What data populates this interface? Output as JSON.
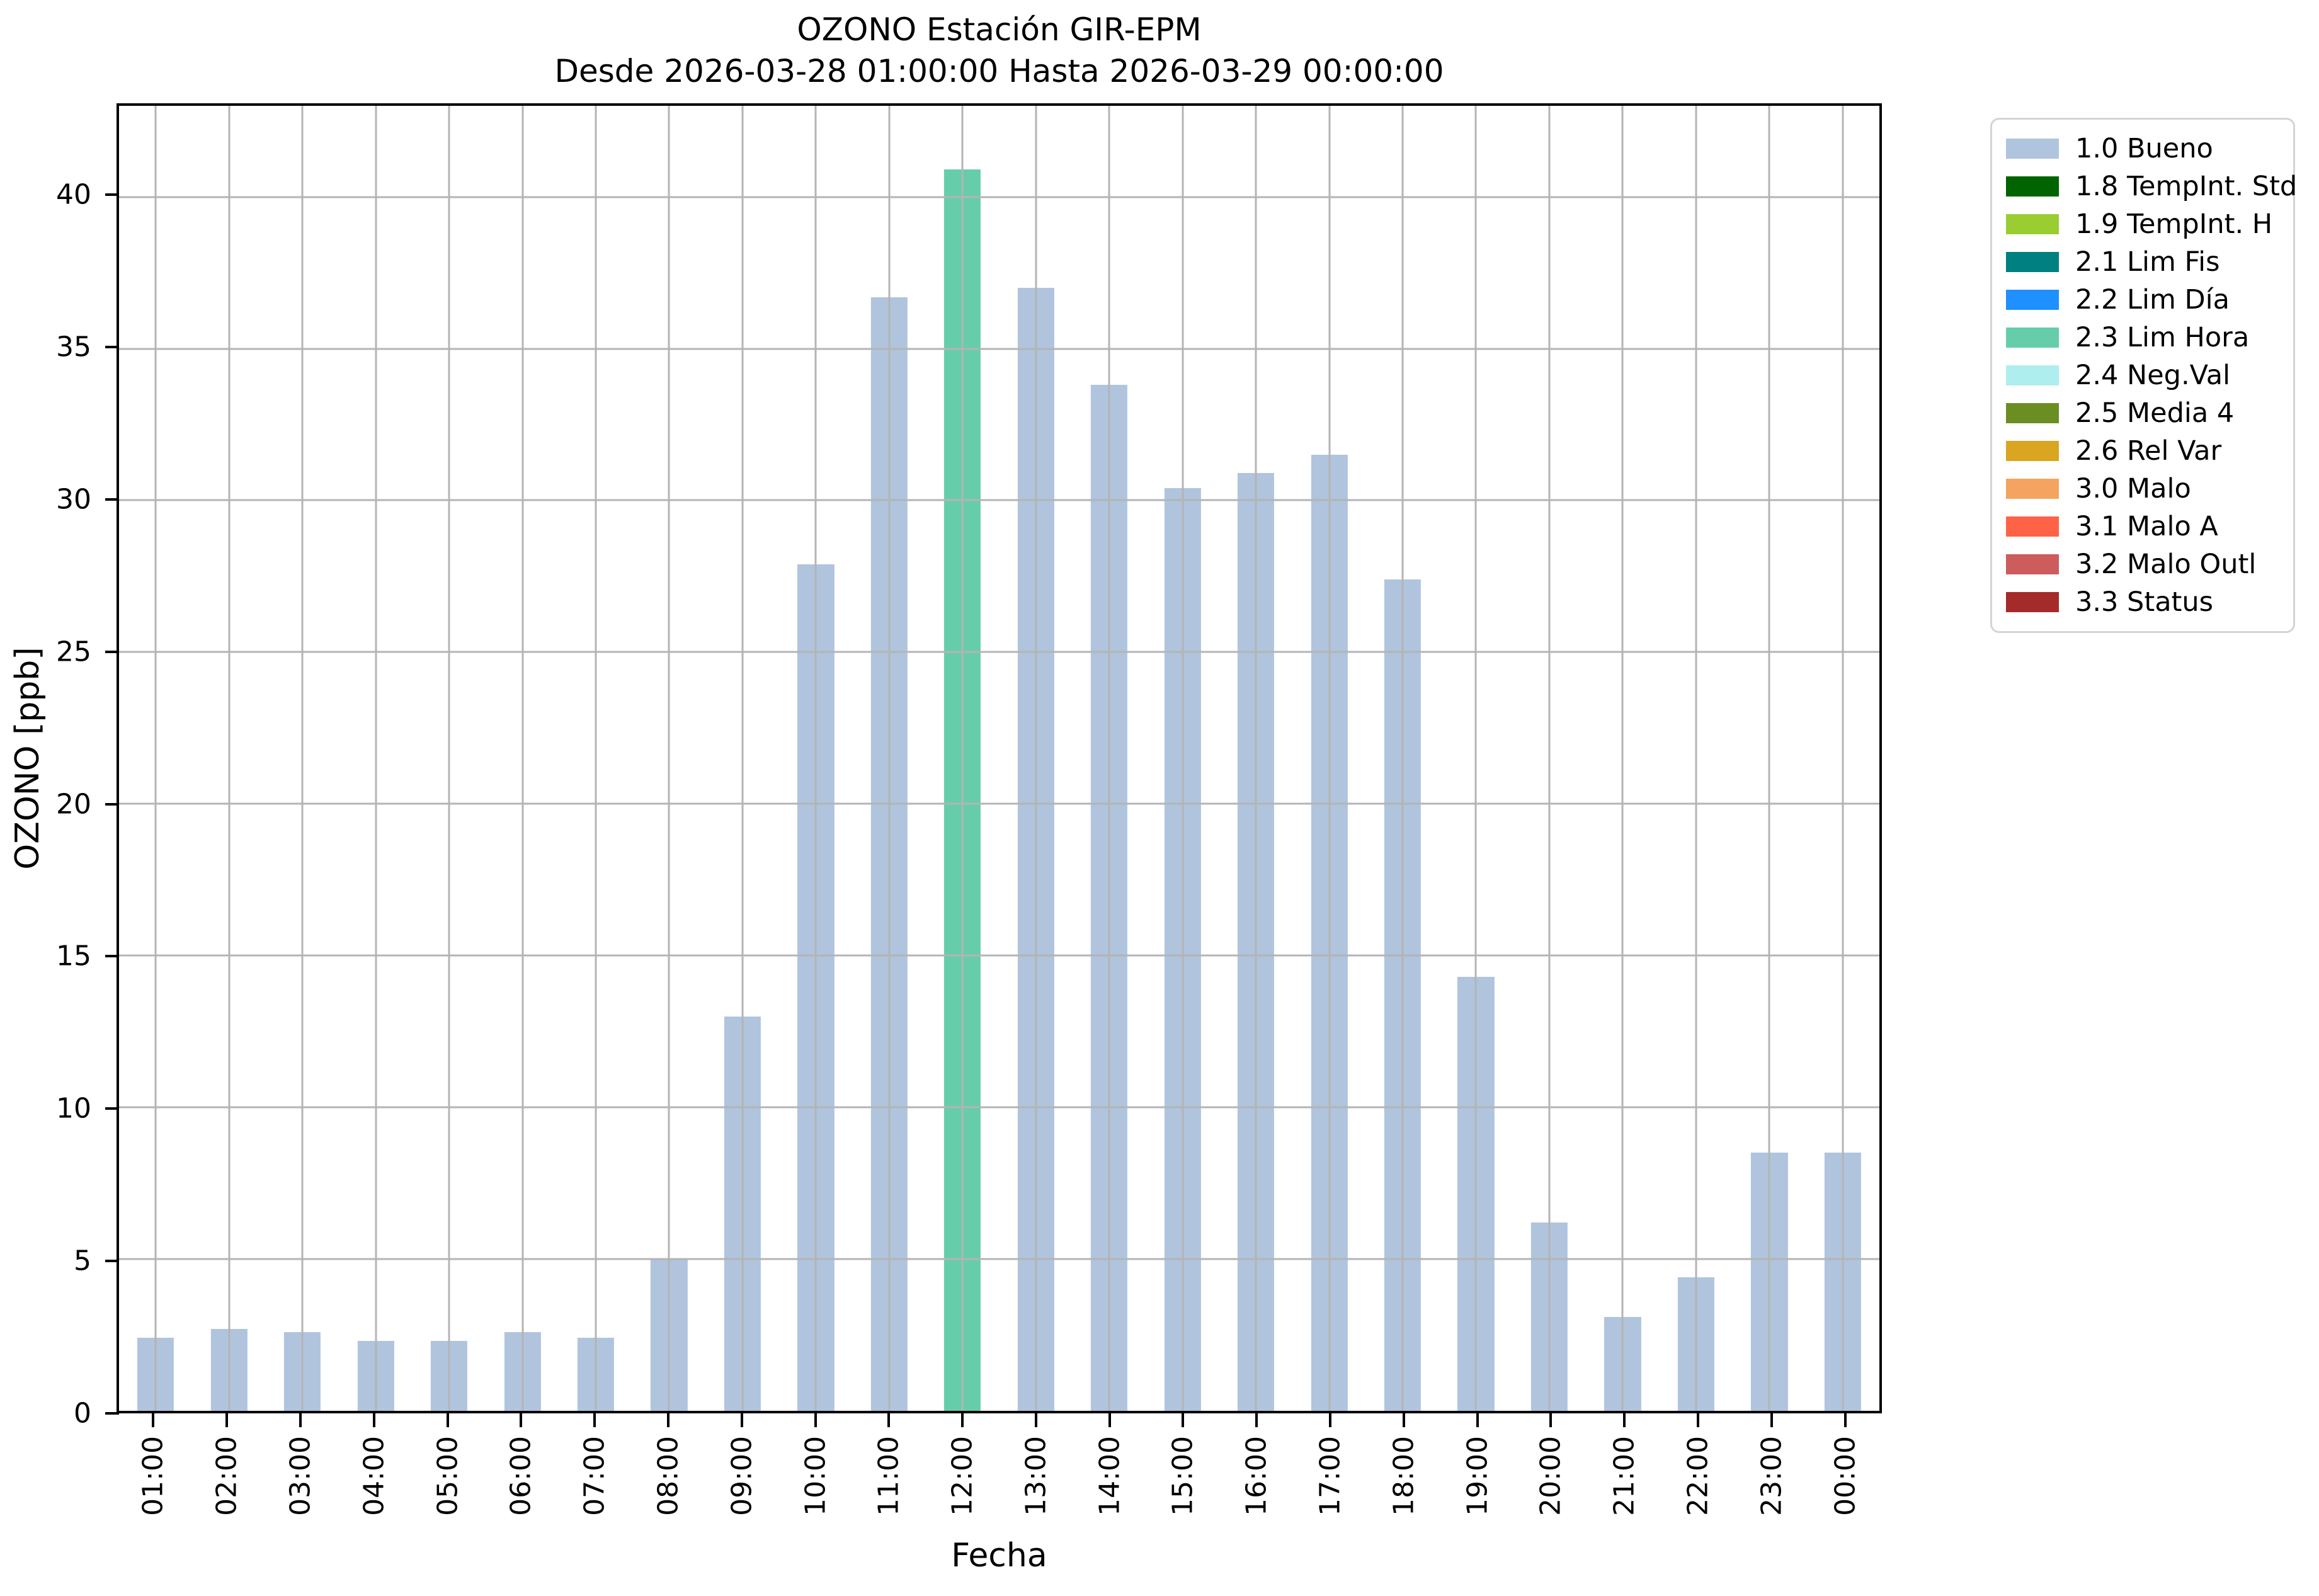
{
  "chart_data": {
    "type": "bar",
    "title": "OZONO Estación GIR-EPM",
    "subtitle": "Desde 2026-03-28 01:00:00 Hasta 2026-03-29 00:00:00",
    "xlabel": "Fecha",
    "ylabel": "OZONO [ppb]",
    "ylim": [
      0,
      43
    ],
    "yticks": [
      0,
      5,
      10,
      15,
      20,
      25,
      30,
      35,
      40
    ],
    "grid": true,
    "grid_color": "#b4b4b4",
    "categories": [
      "01:00",
      "02:00",
      "03:00",
      "04:00",
      "05:00",
      "06:00",
      "07:00",
      "08:00",
      "09:00",
      "10:00",
      "11:00",
      "12:00",
      "13:00",
      "14:00",
      "15:00",
      "16:00",
      "17:00",
      "18:00",
      "19:00",
      "20:00",
      "21:00",
      "22:00",
      "23:00",
      "00:00"
    ],
    "values": [
      2.4,
      2.7,
      2.6,
      2.3,
      2.3,
      2.6,
      2.4,
      5.0,
      13.0,
      27.9,
      36.7,
      40.9,
      37.0,
      33.8,
      30.4,
      30.9,
      31.5,
      27.4,
      14.3,
      6.2,
      3.1,
      4.4,
      8.5,
      8.5
    ],
    "bar_status": [
      "1.0 Bueno",
      "1.0 Bueno",
      "1.0 Bueno",
      "1.0 Bueno",
      "1.0 Bueno",
      "1.0 Bueno",
      "1.0 Bueno",
      "1.0 Bueno",
      "1.0 Bueno",
      "1.0 Bueno",
      "1.0 Bueno",
      "2.3 Lim Hora",
      "1.0 Bueno",
      "1.0 Bueno",
      "1.0 Bueno",
      "1.0 Bueno",
      "1.0 Bueno",
      "1.0 Bueno",
      "1.0 Bueno",
      "1.0 Bueno",
      "1.0 Bueno",
      "1.0 Bueno",
      "1.0 Bueno",
      "1.0 Bueno"
    ],
    "legend": {
      "position": "outside-upper-right",
      "entries": [
        {
          "label": "1.0 Bueno",
          "color": "#b0c4de"
        },
        {
          "label": "1.8 TempInt. Std",
          "color": "#006400"
        },
        {
          "label": "1.9 TempInt. H",
          "color": "#9acd32"
        },
        {
          "label": "2.1 Lim Fis",
          "color": "#008080"
        },
        {
          "label": "2.2 Lim Día",
          "color": "#1e90ff"
        },
        {
          "label": "2.3 Lim Hora",
          "color": "#66cdaa"
        },
        {
          "label": "2.4 Neg.Val",
          "color": "#afeeee"
        },
        {
          "label": "2.5 Media 4",
          "color": "#6b8e23"
        },
        {
          "label": "2.6 Rel Var",
          "color": "#daa520"
        },
        {
          "label": "3.0 Malo",
          "color": "#f4a460"
        },
        {
          "label": "3.1 Malo A",
          "color": "#ff6347"
        },
        {
          "label": "3.2 Malo Outl",
          "color": "#cd5c5c"
        },
        {
          "label": "3.3 Status",
          "color": "#a52a2a"
        }
      ]
    }
  }
}
